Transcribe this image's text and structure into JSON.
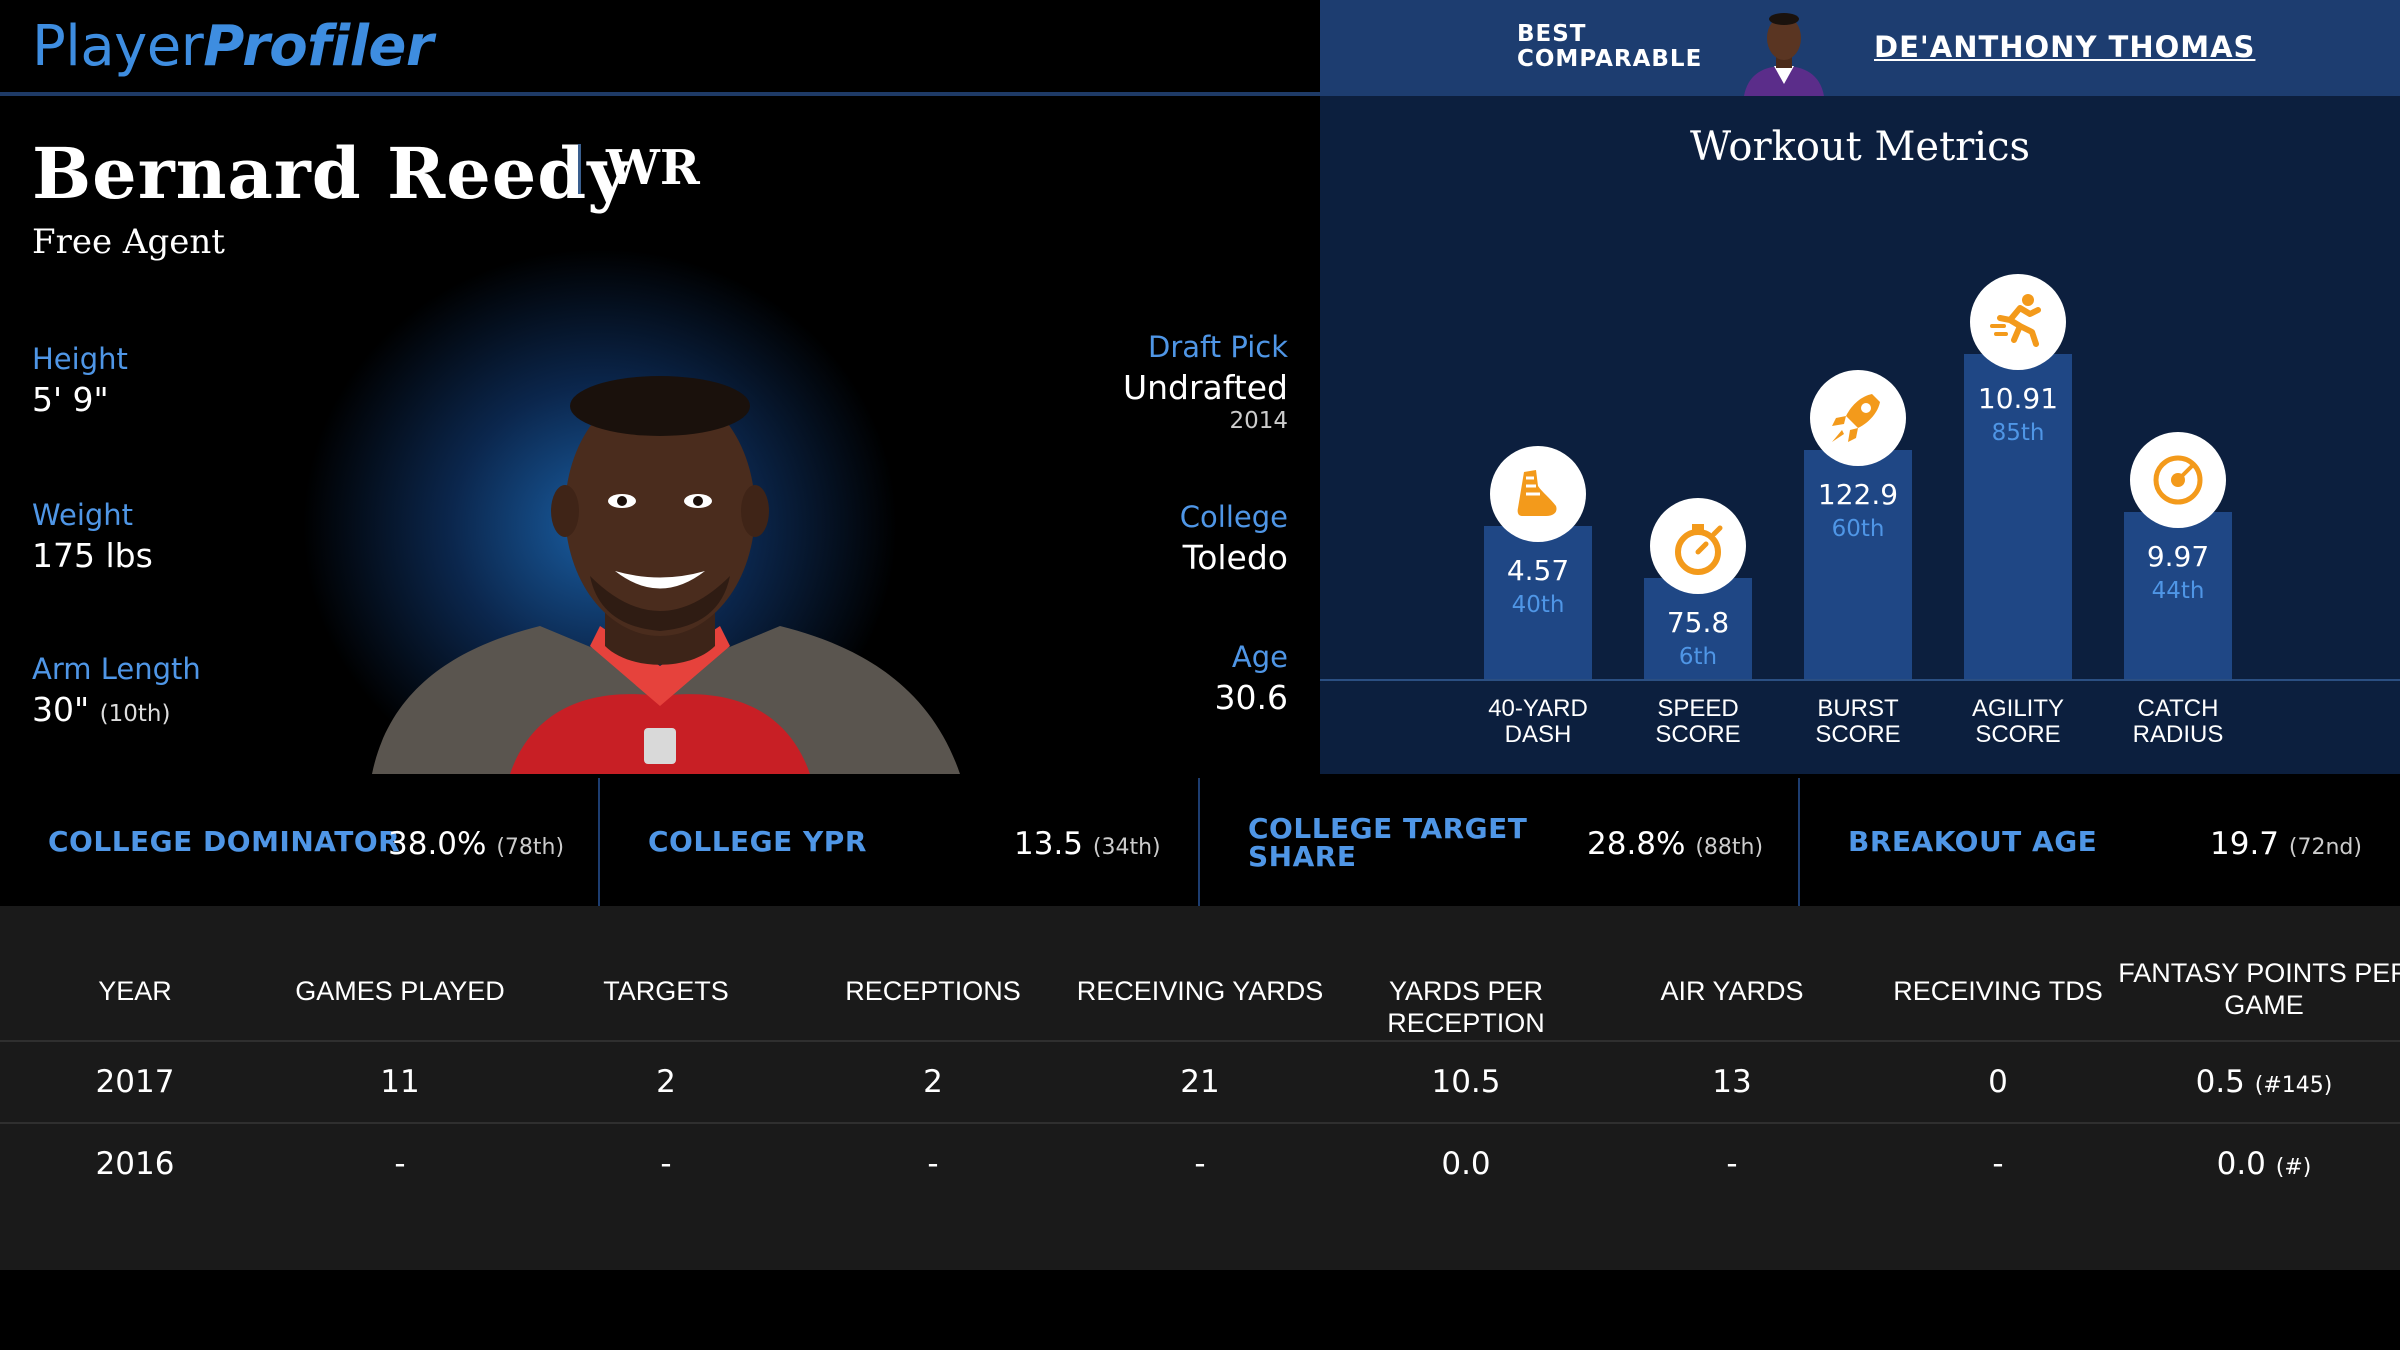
{
  "logo": {
    "part1": "Player",
    "part2": "Profiler"
  },
  "comparable": {
    "label_line1": "BEST",
    "label_line2": "COMPARABLE",
    "name": "DE'ANTHONY THOMAS"
  },
  "player": {
    "name": "Bernard Reedy",
    "position": "WR",
    "team": "Free Agent",
    "height_label": "Height",
    "height": "5' 9\"",
    "weight_label": "Weight",
    "weight": "175 lbs",
    "arm_label": "Arm Length",
    "arm": "30\"",
    "arm_pct": "(10th)",
    "draft_label": "Draft Pick",
    "draft": "Undrafted",
    "draft_year": "2014",
    "college_label": "College",
    "college": "Toledo",
    "age_label": "Age",
    "age": "30.6"
  },
  "workout": {
    "title": "Workout Metrics",
    "metrics": [
      {
        "label1": "40-YARD",
        "label2": "DASH",
        "value": "4.57",
        "pct": "40th",
        "pct_num": 40,
        "icon": "shoe-icon"
      },
      {
        "label1": "SPEED",
        "label2": "SCORE",
        "value": "75.8",
        "pct": "6th",
        "pct_num": 6,
        "icon": "stopwatch-icon"
      },
      {
        "label1": "BURST",
        "label2": "SCORE",
        "value": "122.9",
        "pct": "60th",
        "pct_num": 60,
        "icon": "rocket-icon"
      },
      {
        "label1": "AGILITY",
        "label2": "SCORE",
        "value": "10.91",
        "pct": "85th",
        "pct_num": 85,
        "icon": "runner-icon"
      },
      {
        "label1": "CATCH",
        "label2": "RADIUS",
        "value": "9.97",
        "pct": "44th",
        "pct_num": 44,
        "icon": "target-icon"
      }
    ]
  },
  "college_stats": [
    {
      "label": "COLLEGE DOMINATOR",
      "value": "38.0%",
      "rank": "(78th)"
    },
    {
      "label": "COLLEGE YPR",
      "value": "13.5",
      "rank": "(34th)"
    },
    {
      "label_line1": "COLLEGE TARGET",
      "label_line2": "SHARE",
      "value": "28.8%",
      "rank": "(88th)"
    },
    {
      "label": "BREAKOUT AGE",
      "value": "19.7",
      "rank": "(72nd)"
    }
  ],
  "table": {
    "headers": [
      "YEAR",
      "GAMES PLAYED",
      "TARGETS",
      "RECEPTIONS",
      "RECEIVING YARDS",
      "YARDS PER RECEPTION",
      "AIR YARDS",
      "RECEIVING TDS",
      "FANTASY POINTS PER",
      "GAME"
    ],
    "rows": [
      {
        "year": "2017",
        "games": "11",
        "targets": "2",
        "receptions": "2",
        "yards": "21",
        "ypr": "10.5",
        "air": "13",
        "tds": "0",
        "fpts": "0.5",
        "fpts_rank": "(#145)"
      },
      {
        "year": "2016",
        "games": "-",
        "targets": "-",
        "receptions": "-",
        "yards": "-",
        "ypr": "0.0",
        "air": "-",
        "tds": "-",
        "fpts": "0.0",
        "fpts_rank": "(#)"
      }
    ]
  },
  "colors": {
    "accent": "#4f96e6",
    "bar": "#1f4785",
    "panel": "#0c1f3e",
    "icon": "#f39a1b"
  }
}
